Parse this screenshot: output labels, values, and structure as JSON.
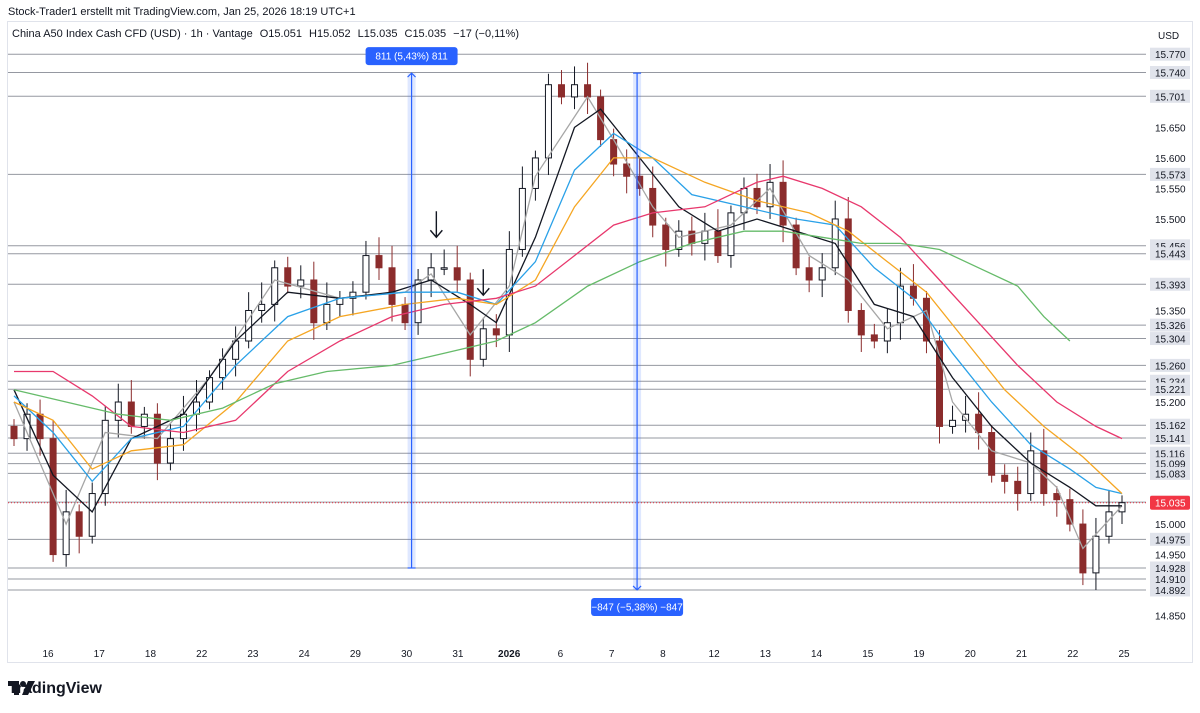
{
  "header": {
    "attribution": "Stock-Trader1 erstellt mit TradingView.com, Jan 25, 2026 18:19 UTC+1"
  },
  "legend": {
    "symbol": "China A50 Index Cash CFD (USD) · 1h · Vantage",
    "open": "O15.051",
    "high": "H15.052",
    "low": "L15.035",
    "close": "C15.035",
    "change": "−17 (−0,11%)"
  },
  "price_scale": {
    "currency": "USD"
  },
  "branding": {
    "name": "TradingView"
  },
  "colors": {
    "up_candle": "#131722",
    "down_candle": "#8b2c2c",
    "sma_fast": "#a6a6a6",
    "sma_black": "#131722",
    "ema_blue": "#2aa1e8",
    "ema_orange": "#f5a623",
    "ema_red": "#e8386d",
    "ema_green": "#66bb6a",
    "horizontal_levels": "#9598a1",
    "range_tool": "#2962ff",
    "last_price": "#f23645"
  },
  "chart_data": {
    "type": "candlestick",
    "ylim": [
      14.81,
      15.79
    ],
    "y_ticks": [
      "14.850",
      "14.950",
      "15.000",
      "15.200",
      "15.350",
      "15.500",
      "15.550",
      "15.600",
      "15.650"
    ],
    "x_tick_labels": [
      "16",
      "17",
      "18",
      "22",
      "23",
      "24",
      "29",
      "30",
      "31",
      "2026",
      "6",
      "7",
      "8",
      "12",
      "13",
      "14",
      "15",
      "19",
      "20",
      "21",
      "22",
      "25"
    ],
    "horizontal_levels": [
      15.77,
      15.74,
      15.701,
      15.573,
      15.456,
      15.443,
      15.393,
      15.326,
      15.304,
      15.26,
      15.234,
      15.221,
      15.162,
      15.141,
      15.116,
      15.099,
      15.083,
      15.036,
      14.975,
      14.928,
      14.91,
      14.892
    ],
    "level_labels": [
      "15.770",
      "15.740",
      "15.701",
      "15.573",
      "15.456",
      "15.443",
      "15.393",
      "15.326",
      "15.304",
      "15.260",
      "15.234",
      "15.221",
      "15.162",
      "15.141",
      "15.116",
      "15.099",
      "15.083",
      "15.036",
      "14.975",
      "14.928",
      "14.910",
      "14.892"
    ],
    "last_price": 15.035,
    "last_price_label": "15.035",
    "measurements": [
      {
        "label": "811 (5,43%) 811",
        "from": 14.928,
        "to": 15.739,
        "bar": 30.5
      },
      {
        "label": "−847 (−5,38%) −847",
        "from": 15.739,
        "to": 14.892,
        "bar": 47.8
      }
    ],
    "arrows": [
      {
        "bar": 32.4,
        "price": 15.47
      },
      {
        "bar": 36.0,
        "price": 15.375
      }
    ],
    "close_path": [
      [
        0,
        15.14
      ],
      [
        1,
        15.18
      ],
      [
        2,
        15.14
      ],
      [
        3,
        14.95
      ],
      [
        4,
        15.02
      ],
      [
        5,
        14.98
      ],
      [
        6,
        15.05
      ],
      [
        7,
        15.17
      ],
      [
        8,
        15.2
      ],
      [
        9,
        15.16
      ],
      [
        10,
        15.18
      ],
      [
        11,
        15.1
      ],
      [
        12,
        15.14
      ],
      [
        13,
        15.18
      ],
      [
        14,
        15.2
      ],
      [
        15,
        15.24
      ],
      [
        16,
        15.27
      ],
      [
        17,
        15.3
      ],
      [
        18,
        15.35
      ],
      [
        19,
        15.36
      ],
      [
        20,
        15.42
      ],
      [
        21,
        15.39
      ],
      [
        22,
        15.4
      ],
      [
        23,
        15.33
      ],
      [
        24,
        15.36
      ],
      [
        25,
        15.37
      ],
      [
        26,
        15.38
      ],
      [
        27,
        15.44
      ],
      [
        28,
        15.42
      ],
      [
        29,
        15.36
      ],
      [
        30,
        15.33
      ],
      [
        31,
        15.4
      ],
      [
        32,
        15.42
      ],
      [
        33,
        15.42
      ],
      [
        34,
        15.4
      ],
      [
        35,
        15.27
      ],
      [
        36,
        15.32
      ],
      [
        37,
        15.31
      ],
      [
        38,
        15.45
      ],
      [
        39,
        15.55
      ],
      [
        40,
        15.6
      ],
      [
        41,
        15.72
      ],
      [
        42,
        15.7
      ],
      [
        43,
        15.72
      ],
      [
        44,
        15.7
      ],
      [
        45,
        15.63
      ],
      [
        46,
        15.59
      ],
      [
        47,
        15.57
      ],
      [
        48,
        15.55
      ],
      [
        49,
        15.49
      ],
      [
        50,
        15.45
      ],
      [
        51,
        15.48
      ],
      [
        52,
        15.46
      ],
      [
        53,
        15.48
      ],
      [
        54,
        15.44
      ],
      [
        55,
        15.51
      ],
      [
        56,
        15.55
      ],
      [
        57,
        15.52
      ],
      [
        58,
        15.56
      ],
      [
        59,
        15.49
      ],
      [
        60,
        15.42
      ],
      [
        61,
        15.4
      ],
      [
        62,
        15.42
      ],
      [
        63,
        15.5
      ],
      [
        64,
        15.35
      ],
      [
        65,
        15.31
      ],
      [
        66,
        15.3
      ],
      [
        67,
        15.33
      ],
      [
        68,
        15.39
      ],
      [
        69,
        15.37
      ],
      [
        70,
        15.3
      ],
      [
        71,
        15.16
      ],
      [
        72,
        15.17
      ],
      [
        73,
        15.18
      ],
      [
        74,
        15.15
      ],
      [
        75,
        15.08
      ],
      [
        76,
        15.07
      ],
      [
        77,
        15.05
      ],
      [
        78,
        15.12
      ],
      [
        79,
        15.05
      ],
      [
        80,
        15.04
      ],
      [
        81,
        15.0
      ],
      [
        82,
        14.92
      ],
      [
        83,
        14.98
      ],
      [
        84,
        15.02
      ],
      [
        85,
        15.035
      ]
    ],
    "series": [
      {
        "key": "sma_fast",
        "values": [
          [
            0,
            15.2
          ],
          [
            4,
            15.0
          ],
          [
            7,
            15.15
          ],
          [
            11,
            15.14
          ],
          [
            15,
            15.24
          ],
          [
            20,
            15.4
          ],
          [
            25,
            15.37
          ],
          [
            30,
            15.38
          ],
          [
            32,
            15.41
          ],
          [
            35,
            15.31
          ],
          [
            38,
            15.39
          ],
          [
            40,
            15.57
          ],
          [
            44,
            15.7
          ],
          [
            46,
            15.63
          ],
          [
            49,
            15.52
          ],
          [
            51,
            15.47
          ],
          [
            55,
            15.49
          ],
          [
            58,
            15.55
          ],
          [
            61,
            15.44
          ],
          [
            64,
            15.4
          ],
          [
            67,
            15.32
          ],
          [
            70,
            15.35
          ],
          [
            72,
            15.2
          ],
          [
            75,
            15.12
          ],
          [
            78,
            15.1
          ],
          [
            80,
            15.06
          ],
          [
            82,
            14.96
          ],
          [
            85,
            15.03
          ]
        ]
      },
      {
        "key": "sma_black",
        "values": [
          [
            0,
            15.22
          ],
          [
            3,
            15.08
          ],
          [
            6,
            15.02
          ],
          [
            9,
            15.14
          ],
          [
            13,
            15.18
          ],
          [
            17,
            15.3
          ],
          [
            21,
            15.38
          ],
          [
            25,
            15.37
          ],
          [
            29,
            15.38
          ],
          [
            32,
            15.4
          ],
          [
            35,
            15.36
          ],
          [
            37,
            15.33
          ],
          [
            40,
            15.47
          ],
          [
            43,
            15.65
          ],
          [
            45,
            15.68
          ],
          [
            48,
            15.6
          ],
          [
            51,
            15.52
          ],
          [
            54,
            15.48
          ],
          [
            57,
            15.5
          ],
          [
            60,
            15.48
          ],
          [
            63,
            15.46
          ],
          [
            66,
            15.36
          ],
          [
            69,
            15.34
          ],
          [
            72,
            15.24
          ],
          [
            75,
            15.16
          ],
          [
            78,
            15.1
          ],
          [
            81,
            15.06
          ],
          [
            83,
            15.03
          ],
          [
            85,
            15.03
          ]
        ]
      },
      {
        "key": "ema_blue",
        "values": [
          [
            0,
            15.21
          ],
          [
            3,
            15.15
          ],
          [
            6,
            15.07
          ],
          [
            9,
            15.14
          ],
          [
            13,
            15.16
          ],
          [
            17,
            15.26
          ],
          [
            21,
            15.34
          ],
          [
            25,
            15.37
          ],
          [
            30,
            15.38
          ],
          [
            34,
            15.38
          ],
          [
            37,
            15.36
          ],
          [
            40,
            15.43
          ],
          [
            43,
            15.58
          ],
          [
            46,
            15.64
          ],
          [
            49,
            15.6
          ],
          [
            52,
            15.54
          ],
          [
            56,
            15.52
          ],
          [
            60,
            15.5
          ],
          [
            63,
            15.49
          ],
          [
            66,
            15.42
          ],
          [
            69,
            15.37
          ],
          [
            72,
            15.28
          ],
          [
            75,
            15.2
          ],
          [
            78,
            15.13
          ],
          [
            81,
            15.09
          ],
          [
            83,
            15.06
          ],
          [
            85,
            15.05
          ]
        ]
      },
      {
        "key": "ema_orange",
        "values": [
          [
            0,
            15.2
          ],
          [
            3,
            15.17
          ],
          [
            6,
            15.09
          ],
          [
            9,
            15.12
          ],
          [
            13,
            15.13
          ],
          [
            17,
            15.2
          ],
          [
            21,
            15.3
          ],
          [
            25,
            15.34
          ],
          [
            30,
            15.36
          ],
          [
            34,
            15.37
          ],
          [
            37,
            15.36
          ],
          [
            40,
            15.4
          ],
          [
            43,
            15.52
          ],
          [
            46,
            15.6
          ],
          [
            49,
            15.6
          ],
          [
            53,
            15.56
          ],
          [
            57,
            15.53
          ],
          [
            61,
            15.51
          ],
          [
            64,
            15.48
          ],
          [
            67,
            15.43
          ],
          [
            70,
            15.38
          ],
          [
            73,
            15.3
          ],
          [
            76,
            15.22
          ],
          [
            79,
            15.16
          ],
          [
            82,
            15.11
          ],
          [
            85,
            15.05
          ]
        ]
      },
      {
        "key": "ema_red",
        "values": [
          [
            0,
            15.25
          ],
          [
            3,
            15.25
          ],
          [
            6,
            15.21
          ],
          [
            9,
            15.16
          ],
          [
            13,
            15.15
          ],
          [
            17,
            15.17
          ],
          [
            21,
            15.25
          ],
          [
            25,
            15.3
          ],
          [
            29,
            15.34
          ],
          [
            33,
            15.36
          ],
          [
            37,
            15.37
          ],
          [
            40,
            15.39
          ],
          [
            43,
            15.44
          ],
          [
            46,
            15.49
          ],
          [
            49,
            15.51
          ],
          [
            53,
            15.52
          ],
          [
            57,
            15.56
          ],
          [
            59,
            15.57
          ],
          [
            62,
            15.55
          ],
          [
            65,
            15.52
          ],
          [
            68,
            15.47
          ],
          [
            71,
            15.4
          ],
          [
            74,
            15.33
          ],
          [
            77,
            15.26
          ],
          [
            80,
            15.2
          ],
          [
            83,
            15.16
          ],
          [
            85,
            15.14
          ]
        ]
      },
      {
        "key": "ema_green",
        "values": [
          [
            0,
            15.22
          ],
          [
            4,
            15.2
          ],
          [
            8,
            15.18
          ],
          [
            12,
            15.17
          ],
          [
            16,
            15.19
          ],
          [
            20,
            15.23
          ],
          [
            24,
            15.25
          ],
          [
            29,
            15.26
          ],
          [
            33,
            15.28
          ],
          [
            37,
            15.3
          ],
          [
            40,
            15.33
          ],
          [
            44,
            15.39
          ],
          [
            48,
            15.43
          ],
          [
            52,
            15.46
          ],
          [
            56,
            15.48
          ],
          [
            59,
            15.48
          ],
          [
            62,
            15.47
          ],
          [
            65,
            15.46
          ],
          [
            68,
            15.46
          ],
          [
            71,
            15.45
          ],
          [
            74,
            15.42
          ],
          [
            77,
            15.39
          ],
          [
            79,
            15.34
          ],
          [
            81,
            15.3
          ]
        ]
      }
    ]
  }
}
